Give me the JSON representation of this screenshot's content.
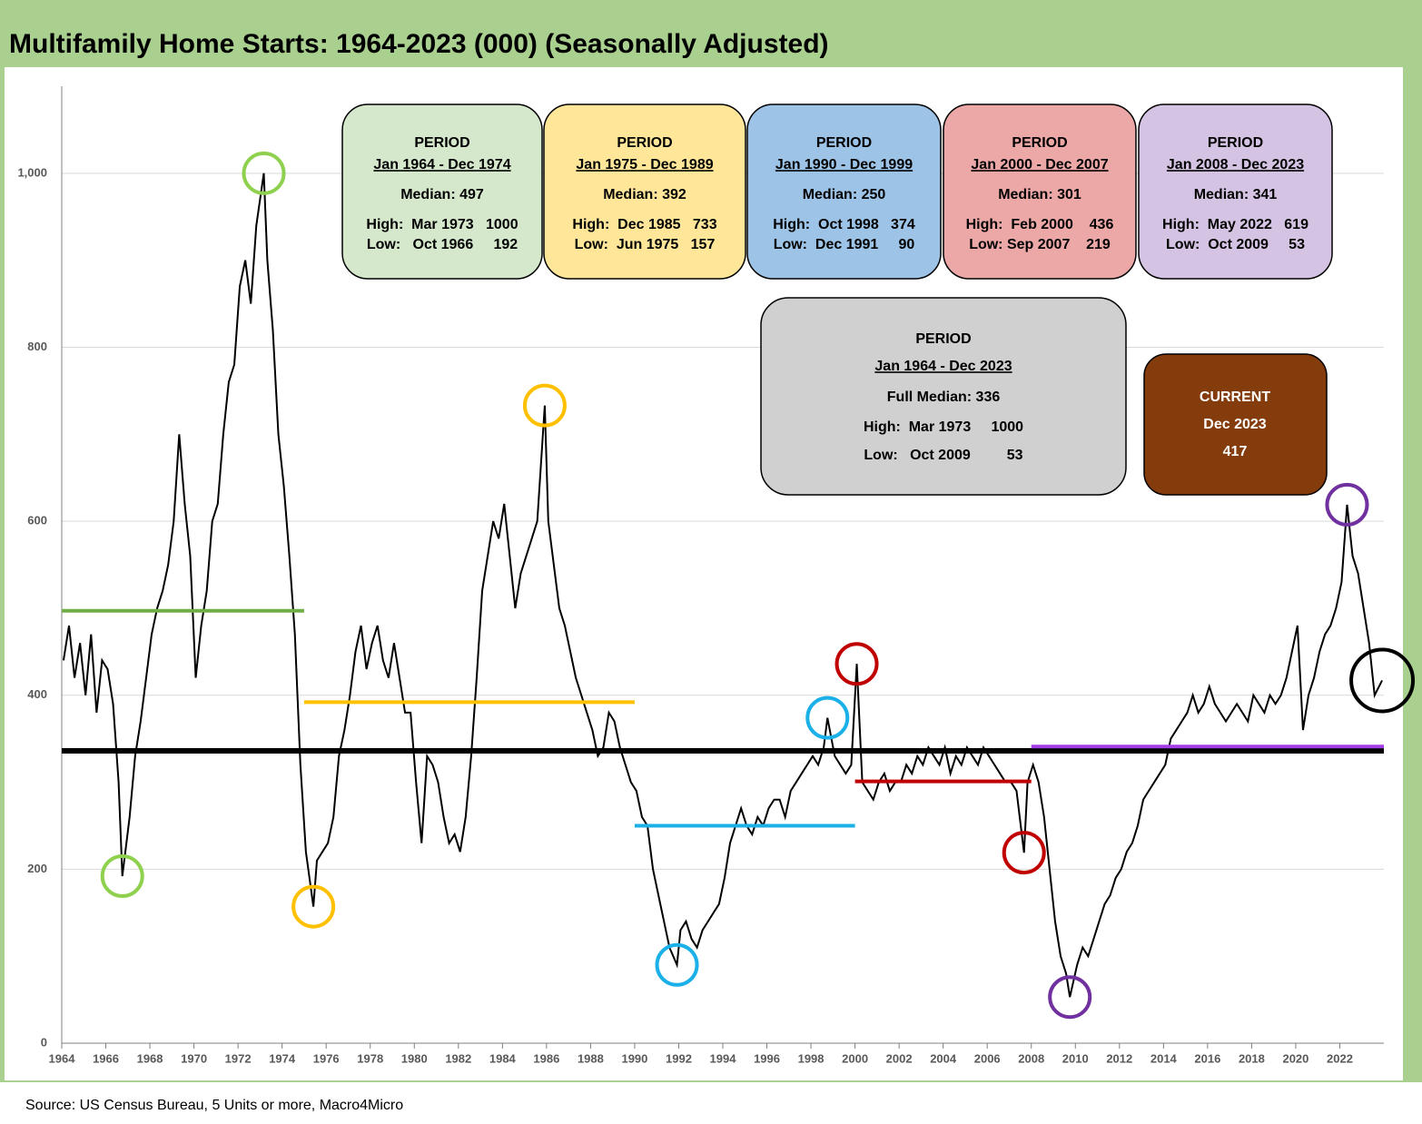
{
  "chart_data": {
    "type": "line",
    "title": "Multifamily Home Starts: 1964-2023 (000) (Seasonally Adjusted)",
    "source": "Source: US Census Bureau, 5 Units or more, Macro4Micro",
    "xlim": [
      1964,
      2024
    ],
    "xticks": [
      1964,
      1966,
      1968,
      1970,
      1972,
      1974,
      1976,
      1978,
      1980,
      1982,
      1984,
      1986,
      1988,
      1990,
      1992,
      1994,
      1996,
      1998,
      2000,
      2002,
      2004,
      2006,
      2008,
      2010,
      2012,
      2014,
      2016,
      2018,
      2020,
      2022
    ],
    "ylim": [
      0,
      1100
    ],
    "yticks": [
      0,
      200,
      400,
      600,
      800,
      {
        "value": 1000,
        "label": "1,000"
      }
    ],
    "grid": true,
    "x": [
      1964.08,
      1964.33,
      1964.58,
      1964.83,
      1965.08,
      1965.33,
      1965.58,
      1965.83,
      1966.08,
      1966.33,
      1966.58,
      1966.75,
      1967.08,
      1967.33,
      1967.58,
      1967.83,
      1968.08,
      1968.33,
      1968.58,
      1968.83,
      1969.08,
      1969.33,
      1969.58,
      1969.83,
      1970.08,
      1970.33,
      1970.58,
      1970.83,
      1971.08,
      1971.33,
      1971.58,
      1971.83,
      1972.08,
      1972.33,
      1972.58,
      1972.83,
      1973.17,
      1973.33,
      1973.58,
      1973.83,
      1974.08,
      1974.33,
      1974.58,
      1974.83,
      1975.08,
      1975.42,
      1975.58,
      1975.83,
      1976.08,
      1976.33,
      1976.58,
      1976.83,
      1977.08,
      1977.33,
      1977.58,
      1977.83,
      1978.08,
      1978.33,
      1978.58,
      1978.83,
      1979.08,
      1979.33,
      1979.58,
      1979.83,
      1980.08,
      1980.33,
      1980.58,
      1980.83,
      1981.08,
      1981.33,
      1981.58,
      1981.83,
      1982.08,
      1982.33,
      1982.58,
      1982.83,
      1983.08,
      1983.33,
      1983.58,
      1983.83,
      1984.08,
      1984.33,
      1984.58,
      1984.83,
      1985.08,
      1985.33,
      1985.58,
      1985.92,
      1986.08,
      1986.33,
      1986.58,
      1986.83,
      1987.08,
      1987.33,
      1987.58,
      1987.83,
      1988.08,
      1988.33,
      1988.58,
      1988.83,
      1989.08,
      1989.33,
      1989.58,
      1989.83,
      1990.08,
      1990.33,
      1990.58,
      1990.83,
      1991.08,
      1991.33,
      1991.58,
      1991.92,
      1992.08,
      1992.33,
      1992.58,
      1992.83,
      1993.08,
      1993.33,
      1993.58,
      1993.83,
      1994.08,
      1994.33,
      1994.58,
      1994.83,
      1995.08,
      1995.33,
      1995.58,
      1995.83,
      1996.08,
      1996.33,
      1996.58,
      1996.83,
      1997.08,
      1997.33,
      1997.58,
      1997.83,
      1998.08,
      1998.33,
      1998.58,
      1998.75,
      1999.08,
      1999.33,
      1999.58,
      1999.83,
      2000.08,
      2000.33,
      2000.58,
      2000.83,
      2001.08,
      2001.33,
      2001.58,
      2001.83,
      2002.08,
      2002.33,
      2002.58,
      2002.83,
      2003.08,
      2003.33,
      2003.58,
      2003.83,
      2004.08,
      2004.33,
      2004.58,
      2004.83,
      2005.08,
      2005.33,
      2005.58,
      2005.83,
      2006.08,
      2006.33,
      2006.58,
      2006.83,
      2007.08,
      2007.33,
      2007.67,
      2007.83,
      2008.08,
      2008.33,
      2008.58,
      2008.83,
      2009.08,
      2009.33,
      2009.58,
      2009.75,
      2010.08,
      2010.33,
      2010.58,
      2010.83,
      2011.08,
      2011.33,
      2011.58,
      2011.83,
      2012.08,
      2012.33,
      2012.58,
      2012.83,
      2013.08,
      2013.33,
      2013.58,
      2013.83,
      2014.08,
      2014.33,
      2014.58,
      2014.83,
      2015.08,
      2015.33,
      2015.58,
      2015.83,
      2016.08,
      2016.33,
      2016.58,
      2016.83,
      2017.08,
      2017.33,
      2017.58,
      2017.83,
      2018.08,
      2018.33,
      2018.58,
      2018.83,
      2019.08,
      2019.33,
      2019.58,
      2019.83,
      2020.08,
      2020.33,
      2020.58,
      2020.83,
      2021.08,
      2021.33,
      2021.58,
      2021.83,
      2022.08,
      2022.33,
      2022.58,
      2022.83,
      2023.08,
      2023.33,
      2023.58,
      2023.92
    ],
    "series": [
      {
        "name": "Multifamily Home Starts",
        "color": "#000000",
        "values": [
          440,
          480,
          420,
          460,
          400,
          470,
          380,
          440,
          430,
          390,
          300,
          192,
          260,
          330,
          370,
          420,
          470,
          500,
          520,
          550,
          600,
          700,
          620,
          560,
          420,
          480,
          520,
          600,
          620,
          700,
          760,
          780,
          870,
          900,
          850,
          940,
          1000,
          900,
          820,
          700,
          640,
          560,
          470,
          320,
          220,
          157,
          210,
          220,
          230,
          260,
          330,
          360,
          400,
          450,
          480,
          430,
          460,
          480,
          440,
          420,
          460,
          420,
          380,
          380,
          300,
          230,
          330,
          320,
          300,
          260,
          230,
          240,
          220,
          260,
          330,
          420,
          520,
          560,
          600,
          580,
          620,
          560,
          500,
          540,
          560,
          580,
          600,
          733,
          600,
          550,
          500,
          480,
          450,
          420,
          400,
          380,
          360,
          330,
          340,
          380,
          370,
          340,
          320,
          300,
          290,
          260,
          250,
          200,
          170,
          140,
          110,
          90,
          130,
          140,
          120,
          110,
          130,
          140,
          150,
          160,
          190,
          230,
          250,
          270,
          250,
          240,
          260,
          250,
          270,
          280,
          280,
          260,
          290,
          300,
          310,
          320,
          330,
          320,
          340,
          374,
          330,
          320,
          310,
          320,
          436,
          300,
          290,
          280,
          300,
          310,
          290,
          300,
          300,
          320,
          310,
          330,
          320,
          340,
          330,
          320,
          340,
          310,
          330,
          320,
          340,
          330,
          320,
          340,
          330,
          320,
          310,
          300,
          300,
          290,
          219,
          300,
          320,
          300,
          260,
          200,
          140,
          100,
          80,
          53,
          90,
          110,
          100,
          120,
          140,
          160,
          170,
          190,
          200,
          220,
          230,
          250,
          280,
          290,
          300,
          310,
          320,
          350,
          360,
          370,
          380,
          400,
          380,
          390,
          410,
          390,
          380,
          370,
          380,
          390,
          380,
          370,
          400,
          390,
          380,
          400,
          390,
          400,
          420,
          450,
          480,
          360,
          400,
          420,
          450,
          470,
          480,
          500,
          530,
          619,
          560,
          540,
          500,
          460,
          400,
          417
        ]
      }
    ],
    "periods": [
      {
        "label": "PERIOD",
        "range": "Jan 1964 - Dec 1974",
        "median_label": "Median: 497",
        "high": "High:  Mar 1973   1000",
        "low": "Low:   Oct 1966     192",
        "median": 497,
        "start": 1964,
        "end": 1975,
        "box_color": "#d5e8cc",
        "line_color": "#70ad47"
      },
      {
        "label": "PERIOD",
        "range": "Jan 1975 - Dec 1989",
        "median_label": "Median: 392",
        "high": "High:  Dec 1985   733",
        "low": "Low:  Jun 1975   157",
        "median": 392,
        "start": 1975,
        "end": 1990,
        "box_color": "#ffe699",
        "line_color": "#ffc000"
      },
      {
        "label": "PERIOD",
        "range": "Jan 1990 - Dec 1999",
        "median_label": "Median: 250",
        "high": "High:  Oct 1998   374",
        "low": "Low:  Dec 1991     90",
        "median": 250,
        "start": 1990,
        "end": 2000,
        "box_color": "#9dc3e6",
        "line_color": "#1cb0e8"
      },
      {
        "label": "PERIOD",
        "range": "Jan 2000 - Dec 2007",
        "median_label": "Median: 301",
        "high": "High:  Feb 2000    436",
        "low": "Low: Sep 2007    219",
        "median": 301,
        "start": 2000,
        "end": 2008,
        "box_color": "#eca7a7",
        "line_color": "#c00000"
      },
      {
        "label": "PERIOD",
        "range": "Jan 2008 - Dec 2023",
        "median_label": "Median: 341",
        "high": "High:  May 2022   619",
        "low": "Low:  Oct 2009     53",
        "median": 341,
        "start": 2008,
        "end": 2024,
        "box_color": "#d5c3e3",
        "line_color": "#a43ee8"
      }
    ],
    "full": {
      "label": "PERIOD",
      "range": "Jan 1964 - Dec 2023",
      "median_label": "Full Median: 336",
      "high": "High:  Mar 1973     1000",
      "low": "Low:   Oct 2009         53",
      "median": 336,
      "start": 1964,
      "end": 2024,
      "box_color": "#d0d0d0",
      "line_color": "#000000"
    },
    "current": {
      "label": "CURRENT",
      "date": "Dec 2023",
      "value": 417,
      "box_color": "#843c0c"
    },
    "markers": [
      {
        "x": 1966.75,
        "y": 192,
        "color": "#8fd14f"
      },
      {
        "x": 1973.17,
        "y": 1000,
        "color": "#8fd14f"
      },
      {
        "x": 1975.42,
        "y": 157,
        "color": "#ffc000"
      },
      {
        "x": 1985.92,
        "y": 733,
        "color": "#ffc000"
      },
      {
        "x": 1991.92,
        "y": 90,
        "color": "#1cb0e8"
      },
      {
        "x": 1998.75,
        "y": 374,
        "color": "#1cb0e8"
      },
      {
        "x": 2000.08,
        "y": 436,
        "color": "#c00000"
      },
      {
        "x": 2007.67,
        "y": 219,
        "color": "#c00000"
      },
      {
        "x": 2009.75,
        "y": 53,
        "color": "#7030a0"
      },
      {
        "x": 2022.33,
        "y": 619,
        "color": "#7030a0"
      },
      {
        "x": 2023.92,
        "y": 417,
        "color": "#000000"
      }
    ]
  }
}
